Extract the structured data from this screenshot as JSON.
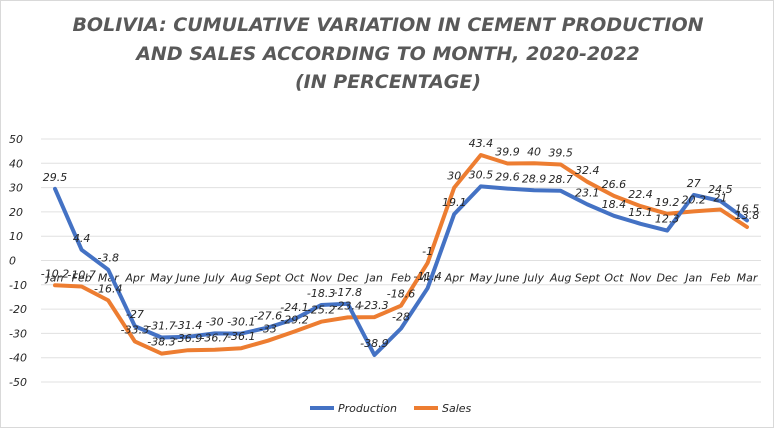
{
  "chart_data": {
    "type": "line",
    "title_lines": [
      "BOLIVIA: CUMULATIVE  VARIATION  IN CEMENT PRODUCTION",
      "AND SALES ACCORDING TO MONTH, 2020-2022",
      "(IN PERCENTAGE)"
    ],
    "categories": [
      "Jan",
      "Feb",
      "Mar",
      "Apr",
      "May",
      "June",
      "July",
      "Aug",
      "Sept",
      "Oct",
      "Nov",
      "Dec",
      "Jan",
      "Feb",
      "Mar",
      "Apr",
      "May",
      "June",
      "July",
      "Aug",
      "Sept",
      "Oct",
      "Nov",
      "Dec",
      "Jan",
      "Feb",
      "Mar"
    ],
    "yticks": [
      50,
      40,
      30,
      20,
      10,
      0,
      -10,
      -20,
      -30,
      -40,
      -50
    ],
    "ylim": [
      -50,
      50
    ],
    "grid": true,
    "legend_position": "bottom-center",
    "series": [
      {
        "name": "Production",
        "color": "#4472c4",
        "values": [
          29.5,
          4.4,
          -3.8,
          -27,
          -31.7,
          -31.4,
          -30,
          -30.1,
          -27.6,
          -24.1,
          -18.3,
          -17.8,
          -38.9,
          -28,
          -11.4,
          19.1,
          30.5,
          29.6,
          28.9,
          28.7,
          23.1,
          18.4,
          15.1,
          12.3,
          27,
          24.5,
          16.5
        ],
        "labels": [
          "29.5",
          "4.4",
          "-3.8",
          "-27",
          "-31.7",
          "-31.4",
          "-30",
          "-30.1",
          "-27.6",
          "-24.1",
          "-18.3",
          "-17.8",
          "-38.9",
          "-28",
          "-11.4",
          "19.1",
          "30.5",
          "29.6",
          "28.9",
          "28.7",
          "23.1",
          "18.4",
          "15.1",
          "12.3",
          "27",
          "24.5",
          "16.5"
        ]
      },
      {
        "name": "Sales",
        "color": "#ed7d31",
        "values": [
          -10.2,
          -10.7,
          -16.4,
          -33.3,
          -38.3,
          -36.9,
          -36.7,
          -36.1,
          -33,
          -29.2,
          -25.2,
          -23.4,
          -23.3,
          -18.6,
          -1,
          30,
          43.4,
          39.9,
          40,
          39.5,
          32.4,
          26.6,
          22.4,
          19.2,
          20.2,
          21,
          13.8
        ],
        "labels": [
          "-10.2",
          "-10.7",
          "-16.4",
          "-33.3",
          "-38.3",
          "-36.9",
          "-36.7",
          "-36.1",
          "-33",
          "-29.2",
          "-25.2",
          "-23.4",
          "-23.3",
          "-18.6",
          "-1",
          "30",
          "43.4",
          "39.9",
          "40",
          "39.5",
          "32.4",
          "26.6",
          "22.4",
          "19.2",
          "20.2",
          "21",
          "13.8"
        ]
      }
    ]
  }
}
